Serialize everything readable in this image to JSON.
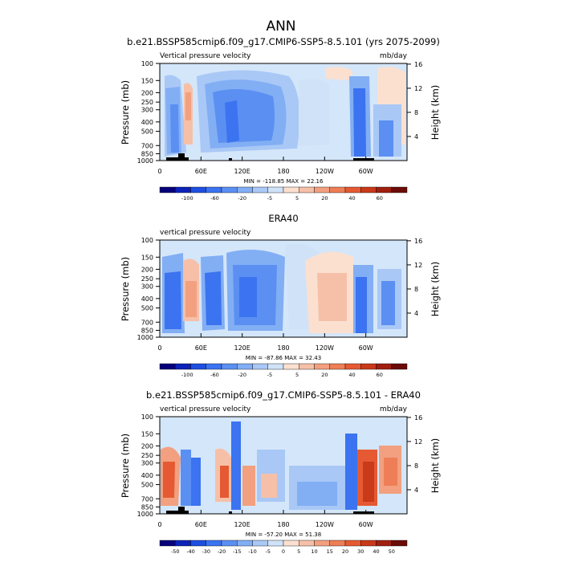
{
  "figure_title": "ANN",
  "chart_data": [
    {
      "type": "heatmap",
      "title": "b.e21.BSSP585cmip6.f09_g17.CMIP6-SSP5-8.5.101 (yrs 2075-2099)",
      "left_label": "Vertical pressure velocity",
      "right_label": "mb/day",
      "ylabel": "Pressure (mb)",
      "y2label": "Height (km)",
      "xticks": [
        "0",
        "60E",
        "120E",
        "180",
        "120W",
        "60W"
      ],
      "yticks": [
        "100",
        "150",
        "200",
        "250",
        "300",
        "400",
        "500",
        "700",
        "850",
        "1000"
      ],
      "y2ticks": [
        "16",
        "12",
        "8",
        "4"
      ],
      "stats": "MIN = -118.85  MAX = 22.16",
      "colorbar_labels": [
        "-100",
        "-60",
        "-20",
        "-5",
        "5",
        "20",
        "40",
        "60"
      ]
    },
    {
      "type": "heatmap",
      "title": "ERA40",
      "left_label": "vertical pressure velocity",
      "right_label": "",
      "ylabel": "Pressure (mb)",
      "y2label": "Height (km)",
      "xticks": [
        "0",
        "60E",
        "120E",
        "180",
        "120W",
        "60W"
      ],
      "yticks": [
        "100",
        "150",
        "200",
        "250",
        "300",
        "400",
        "500",
        "700",
        "850",
        "1000"
      ],
      "y2ticks": [
        "16",
        "12",
        "8",
        "4"
      ],
      "stats": "MIN = -87.86  MAX = 32.43",
      "colorbar_labels": [
        "-100",
        "-60",
        "-20",
        "-5",
        "5",
        "20",
        "40",
        "60"
      ]
    },
    {
      "type": "heatmap",
      "title": "b.e21.BSSP585cmip6.f09_g17.CMIP6-SSP5-8.5.101 - ERA40",
      "left_label": "vertical pressure velocity",
      "right_label": "mb/day",
      "ylabel": "Pressure (mb)",
      "y2label": "Height (km)",
      "xticks": [
        "0",
        "60E",
        "120E",
        "180",
        "120W",
        "60W"
      ],
      "yticks": [
        "100",
        "150",
        "200",
        "250",
        "300",
        "400",
        "500",
        "700",
        "850",
        "1000"
      ],
      "y2ticks": [
        "16",
        "12",
        "8",
        "4"
      ],
      "stats": "MIN = -57.20  MAX = 51.38",
      "colorbar_labels": [
        "-50",
        "-40",
        "-30",
        "-20",
        "-15",
        "-10",
        "-5",
        "0",
        "5",
        "10",
        "15",
        "20",
        "30",
        "40",
        "50"
      ]
    }
  ],
  "colors": {
    "abs_scale": [
      "#08007a",
      "#0d22b8",
      "#1f4fe0",
      "#3b73f0",
      "#5b8ff2",
      "#82aef4",
      "#a9c8f6",
      "#d0e2f8",
      "#fbe0d0",
      "#f6c0a8",
      "#f2a07f",
      "#ee7e57",
      "#e55a32",
      "#c93a1a",
      "#a01f0f",
      "#6b0c06"
    ],
    "diff_scale": [
      "#08007a",
      "#0d22b8",
      "#1f4fe0",
      "#3b73f0",
      "#5b8ff2",
      "#82aef4",
      "#a9c8f6",
      "#d0e2f8",
      "#fbe0d0",
      "#f6c0a8",
      "#f2a07f",
      "#ee7e57",
      "#e55a32",
      "#c93a1a",
      "#a01f0f",
      "#6b0c06"
    ],
    "background_field": "#d4e6f9",
    "land_mask": "#000000"
  }
}
